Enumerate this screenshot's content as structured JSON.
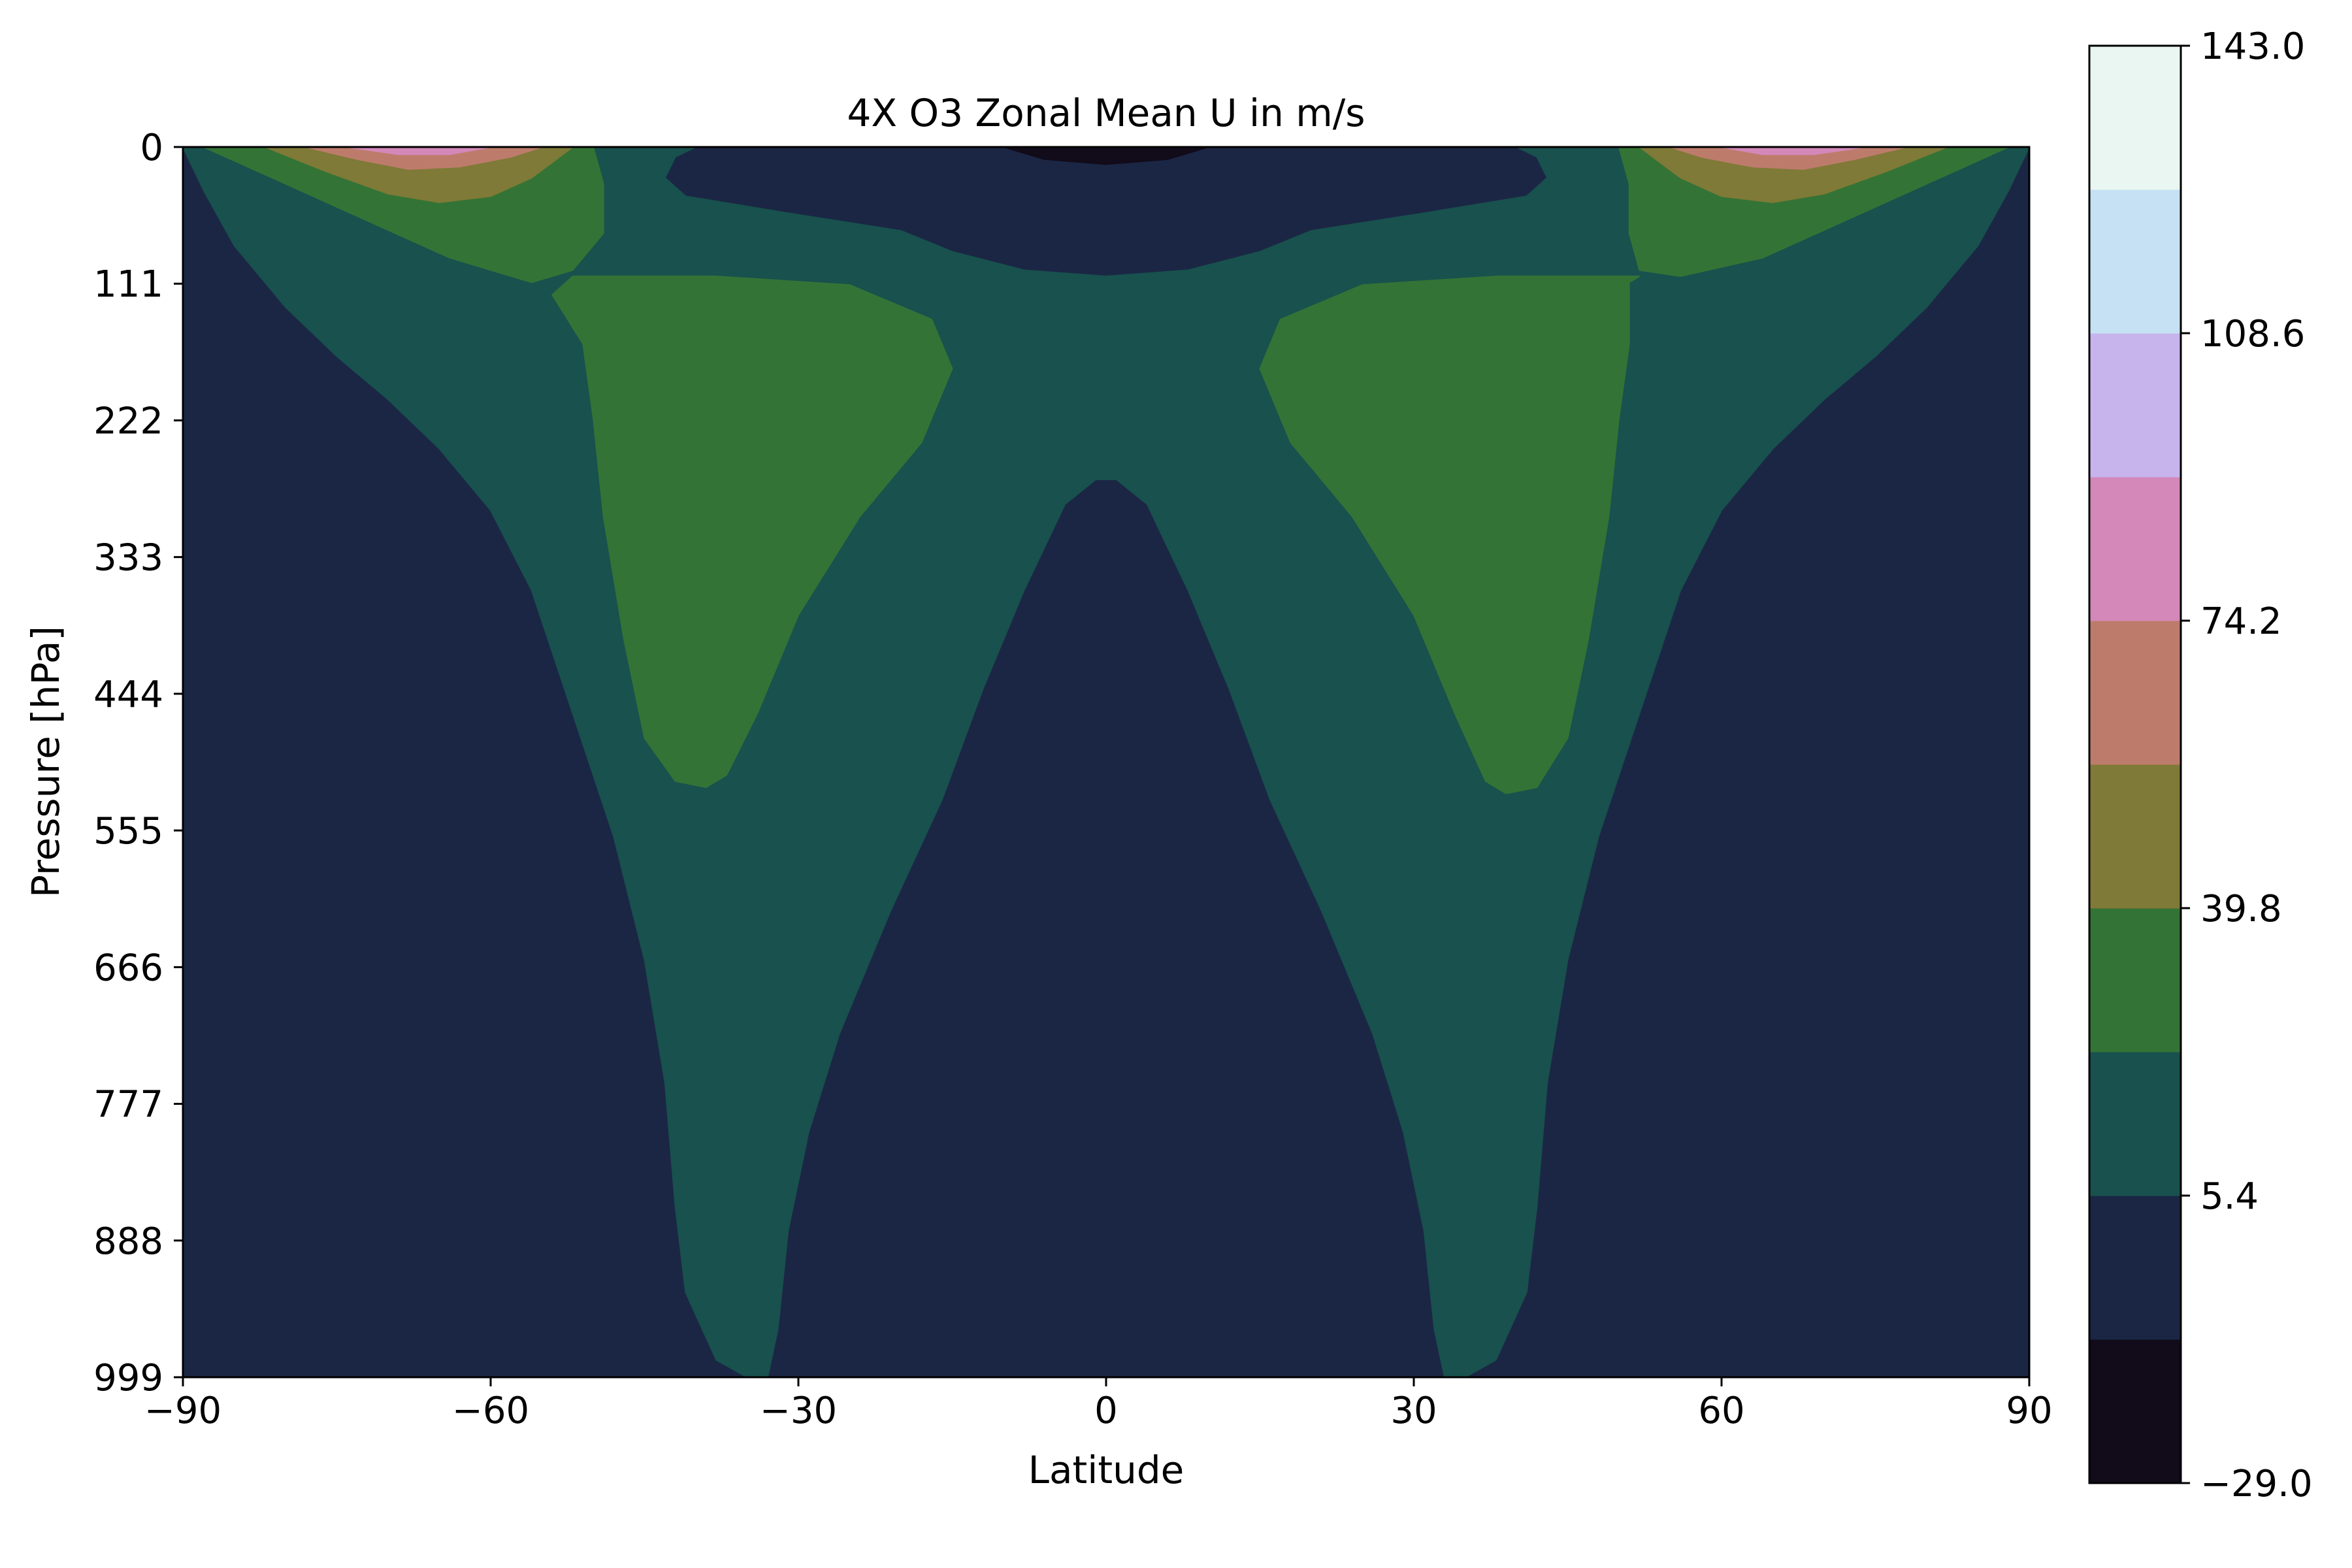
{
  "chart_data": {
    "type": "heatmap",
    "subtype": "filled-contour",
    "title": "4X O3 Zonal Mean U in m/s",
    "xlabel": "Latitude",
    "ylabel": "Pressure [hPa]",
    "xlim": [
      -90,
      90
    ],
    "ylim": [
      999,
      0
    ],
    "y_inverted": true,
    "x_ticks": [
      -90,
      -60,
      -30,
      0,
      30,
      60,
      90
    ],
    "x_tick_labels": [
      "−90",
      "−60",
      "−30",
      "0",
      "30",
      "60",
      "90"
    ],
    "y_ticks": [
      0,
      111,
      222,
      333,
      444,
      555,
      666,
      777,
      888,
      999
    ],
    "y_tick_labels": [
      "0",
      "111",
      "222",
      "333",
      "444",
      "555",
      "666",
      "777",
      "888",
      "999"
    ],
    "colorbar": {
      "min": -29.0,
      "max": 143.0,
      "levels": [
        -29.0,
        -11.8,
        5.4,
        22.6,
        39.8,
        57.0,
        74.2,
        91.4,
        108.6,
        125.8,
        143.0
      ],
      "tick_values": [
        -29.0,
        5.4,
        39.8,
        74.2,
        108.6,
        143.0
      ],
      "tick_labels": [
        "−29.0",
        "5.4",
        "39.8",
        "74.2",
        "108.6",
        "143.0"
      ],
      "colors": [
        "#110b1a",
        "#1b2644",
        "#18514e",
        "#347336",
        "#7f7a37",
        "#bd7c6b",
        "#d388b9",
        "#c7b4ec",
        "#c5e1f3",
        "#e9f6f2"
      ]
    },
    "regions": [
      {
        "level_index": 1,
        "description": "background weak wind (-11.8 to 5.4)"
      },
      {
        "level_index": 0,
        "description": "weak easterlies near 0 hPa at equator",
        "lat_range": [
          -10,
          10
        ],
        "pressure_range": [
          0,
          15
        ]
      },
      {
        "level_index": 2,
        "description": "southern hemisphere jet band",
        "lat_range": [
          -90,
          -30
        ],
        "pressure_range": [
          0,
          999
        ]
      },
      {
        "level_index": 2,
        "description": "northern hemisphere jet band",
        "lat_range": [
          30,
          90
        ],
        "pressure_range": [
          0,
          999
        ]
      },
      {
        "level_index": 3,
        "description": "southern subtropical jet core",
        "lat_center": -38,
        "pressure_range": [
          110,
          520
        ]
      },
      {
        "level_index": 3,
        "description": "northern subtropical jet core",
        "lat_center": 38,
        "pressure_range": [
          110,
          525
        ]
      },
      {
        "level_index": 3,
        "description": "southern polar stratospheric jet",
        "lat_center": -65,
        "pressure_range": [
          0,
          70
        ]
      },
      {
        "level_index": 3,
        "description": "northern polar stratospheric jet",
        "lat_center": 65,
        "pressure_range": [
          0,
          70
        ]
      },
      {
        "level_index": 4,
        "description": "southern polar jet max",
        "lat_center": -67,
        "pressure_range": [
          0,
          45
        ]
      },
      {
        "level_index": 4,
        "description": "northern polar jet max",
        "lat_center": 67,
        "pressure_range": [
          0,
          45
        ]
      },
      {
        "level_index": 5,
        "description": "southern polar jet core",
        "lat_center": -68,
        "pressure_range": [
          0,
          20
        ]
      },
      {
        "level_index": 5,
        "description": "northern polar jet core",
        "lat_center": 68,
        "pressure_range": [
          0,
          20
        ]
      }
    ]
  }
}
